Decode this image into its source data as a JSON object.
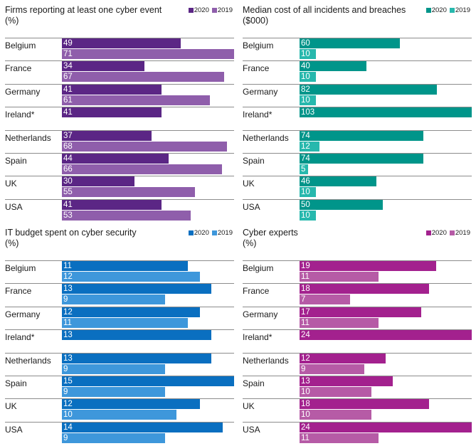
{
  "chart_data": [
    {
      "type": "bar",
      "title": "Firms reporting at least one cyber event",
      "unit": "(%)",
      "legend": [
        "2020",
        "2019"
      ],
      "colors": [
        "#5b2685",
        "#8f5eab"
      ],
      "max": 71,
      "categories": [
        "Belgium",
        "France",
        "Germany",
        "Ireland*",
        "Netherlands",
        "Spain",
        "UK",
        "USA"
      ],
      "series": [
        {
          "name": "2020",
          "values": [
            49,
            34,
            41,
            41,
            37,
            44,
            30,
            41
          ]
        },
        {
          "name": "2019",
          "values": [
            71,
            67,
            61,
            null,
            68,
            66,
            55,
            53
          ]
        }
      ]
    },
    {
      "type": "bar",
      "title": "Median cost of all incidents and breaches",
      "unit": "($000)",
      "legend": [
        "2020",
        "2019"
      ],
      "colors": [
        "#00958a",
        "#27b8ad"
      ],
      "max": 103,
      "categories": [
        "Belgium",
        "France",
        "Germany",
        "Ireland*",
        "Netherlands",
        "Spain",
        "UK",
        "USA"
      ],
      "series": [
        {
          "name": "2020",
          "values": [
            60,
            40,
            82,
            103,
            74,
            74,
            46,
            50
          ]
        },
        {
          "name": "2019",
          "values": [
            10,
            10,
            10,
            null,
            12,
            5,
            10,
            10
          ]
        }
      ]
    },
    {
      "type": "bar",
      "title": "IT budget spent on cyber security",
      "unit": "(%)",
      "legend": [
        "2020",
        "2019"
      ],
      "colors": [
        "#0a6fc0",
        "#3e97db"
      ],
      "max": 15,
      "categories": [
        "Belgium",
        "France",
        "Germany",
        "Ireland*",
        "Netherlands",
        "Spain",
        "UK",
        "USA"
      ],
      "series": [
        {
          "name": "2020",
          "values": [
            11,
            13,
            12,
            13,
            13,
            15,
            12,
            14
          ]
        },
        {
          "name": "2019",
          "values": [
            12,
            9,
            11,
            null,
            9,
            9,
            10,
            9
          ]
        }
      ]
    },
    {
      "type": "bar",
      "title": "Cyber experts",
      "unit": "(%)",
      "legend": [
        "2020",
        "2019"
      ],
      "colors": [
        "#a3218e",
        "#b65ba6"
      ],
      "max": 24,
      "categories": [
        "Belgium",
        "France",
        "Germany",
        "Ireland*",
        "Netherlands",
        "Spain",
        "UK",
        "USA"
      ],
      "series": [
        {
          "name": "2020",
          "values": [
            19,
            18,
            17,
            24,
            12,
            13,
            18,
            24
          ]
        },
        {
          "name": "2019",
          "values": [
            11,
            7,
            11,
            null,
            9,
            10,
            10,
            11
          ]
        }
      ]
    }
  ]
}
